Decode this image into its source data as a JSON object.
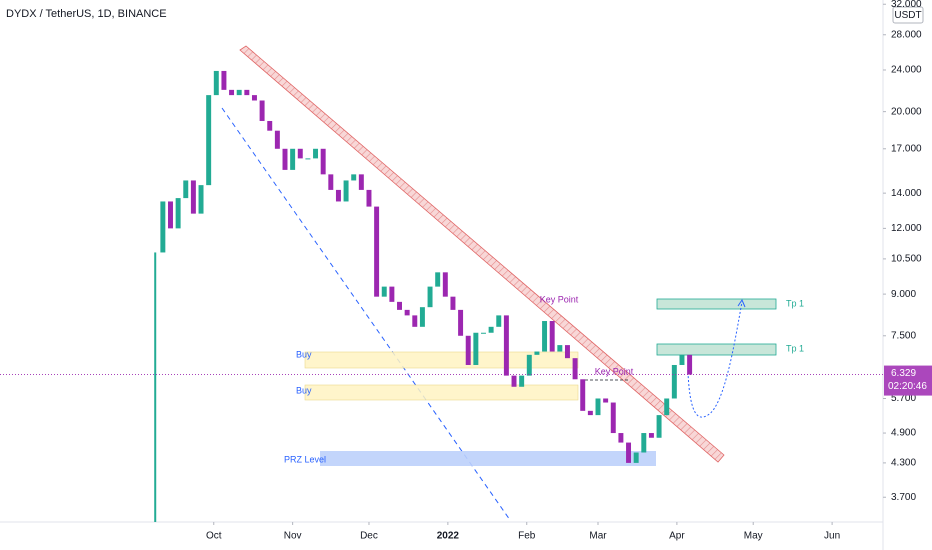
{
  "chart_data": {
    "type": "candlestick",
    "title": "DYDX / TetherUS, 1D, BINANCE",
    "currency": "USDT",
    "x": [
      0,
      3,
      6,
      9,
      12,
      15,
      18,
      21,
      24,
      27,
      30,
      33,
      36,
      39,
      42,
      45,
      48,
      51,
      54,
      57,
      60,
      63,
      66,
      69,
      72,
      75,
      78,
      81,
      84,
      87,
      90,
      93,
      96,
      99,
      102,
      105,
      108,
      111,
      114,
      117,
      120,
      123,
      126,
      129,
      132,
      135,
      138,
      141,
      144,
      147,
      150,
      153,
      156,
      159,
      162,
      165,
      168,
      171,
      174,
      177,
      180,
      183,
      186,
      189,
      192,
      195,
      198,
      201,
      204,
      207,
      210
    ],
    "close": [
      10.8,
      13.5,
      12,
      13.7,
      14.8,
      12.8,
      14.5,
      21.5,
      23.9,
      22,
      21.5,
      22,
      21.5,
      21,
      19.2,
      18.4,
      17,
      15.5,
      17,
      16.3,
      16.3,
      17,
      15.2,
      14.2,
      13.5,
      14.8,
      15.2,
      14.2,
      13.2,
      8.9,
      9.3,
      8.7,
      8.4,
      8.2,
      7.8,
      8.5,
      9.3,
      9.9,
      8.9,
      8.4,
      7.5,
      6.6,
      7.6,
      7.6,
      7.8,
      8.2,
      6.3,
      6.0,
      6.3,
      6.9,
      7.0,
      8.0,
      7.0,
      7.2,
      6.8,
      6.2,
      5.4,
      5.3,
      5.7,
      5.6,
      4.9,
      4.7,
      4.3,
      4.5,
      4.9,
      4.8,
      5.3,
      5.7,
      6.6,
      6.9,
      6.329
    ],
    "up_color": "#22ab94",
    "down_color": "#9c27b0",
    "log_scale": true,
    "grid": false,
    "xlim": [
      -61,
      286
    ],
    "xticks": [
      {
        "value": 23,
        "label": "Oct"
      },
      {
        "value": 54,
        "label": "Nov"
      },
      {
        "value": 84,
        "label": "Dec"
      },
      {
        "value": 115,
        "label": "2022"
      },
      {
        "value": 146,
        "label": "Feb"
      },
      {
        "value": 174,
        "label": "Mar"
      },
      {
        "value": 205,
        "label": "Apr"
      },
      {
        "value": 235,
        "label": "May"
      },
      {
        "value": 266,
        "label": "Jun"
      }
    ],
    "ylim": [
      3.32,
      32.6
    ],
    "yticks": [
      {
        "value": 32,
        "label": "32.000"
      },
      {
        "value": 28,
        "label": "28.000"
      },
      {
        "value": 24,
        "label": "24.000"
      },
      {
        "value": 20,
        "label": "20.000"
      },
      {
        "value": 17,
        "label": "17.000"
      },
      {
        "value": 14,
        "label": "14.000"
      },
      {
        "value": 12,
        "label": "12.000"
      },
      {
        "value": 10.5,
        "label": "10.500"
      },
      {
        "value": 9,
        "label": "9.000"
      },
      {
        "value": 7.5,
        "label": "7.500"
      },
      {
        "value": 5.7,
        "label": "5.700"
      },
      {
        "value": 4.9,
        "label": "4.900"
      },
      {
        "value": 4.3,
        "label": "4.300"
      },
      {
        "value": 3.7,
        "label": "3.700"
      }
    ],
    "last_price": 6.329,
    "countdown": "02:20:46",
    "annotations": [
      {
        "text": "Buy"
      },
      {
        "text": "Buy"
      },
      {
        "text": "PRZ Level"
      },
      {
        "text": "Key Point"
      },
      {
        "text": "Key Point"
      },
      {
        "text": "Tp 1"
      },
      {
        "text": "Tp 1"
      }
    ]
  }
}
